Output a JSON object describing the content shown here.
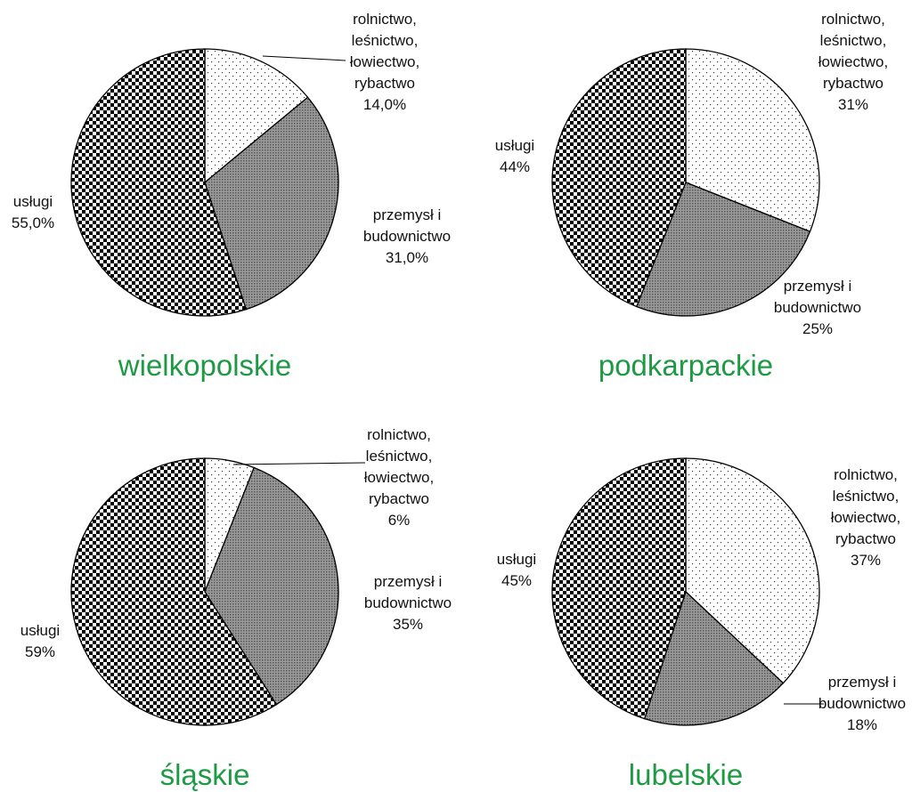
{
  "chart_data": [
    {
      "type": "pie",
      "title": "wielkopolskie",
      "categories": [
        "rolnictwo,\nleśnictwo,\nłowiectwo,\nrybactwo",
        "przemysł i\nbudownictwo",
        "usługi"
      ],
      "values": [
        14,
        31,
        55
      ],
      "value_labels": [
        "14,0%",
        "31,0%",
        "55,0%"
      ]
    },
    {
      "type": "pie",
      "title": "podkarpackie",
      "categories": [
        "rolnictwo,\nleśnictwo,\nłowiectwo,\nrybactwo",
        "przemysł i\nbudownictwo",
        "usługi"
      ],
      "values": [
        31,
        25,
        44
      ],
      "value_labels": [
        "31%",
        "25%",
        "44%"
      ]
    },
    {
      "type": "pie",
      "title": "śląskie",
      "categories": [
        "rolnictwo,\nleśnictwo,\nłowiectwo,\nrybactwo",
        "przemysł i\nbudownictwo",
        "usługi"
      ],
      "values": [
        6,
        35,
        59
      ],
      "value_labels": [
        "6%",
        "35%",
        "59%"
      ]
    },
    {
      "type": "pie",
      "title": "lubelskie",
      "categories": [
        "rolnictwo,\nleśnictwo,\nłowiectwo,\nrybactwo",
        "przemysł i\nbudownictwo",
        "usługi"
      ],
      "values": [
        37,
        18,
        45
      ],
      "value_labels": [
        "37%",
        "18%",
        "45%"
      ]
    }
  ]
}
